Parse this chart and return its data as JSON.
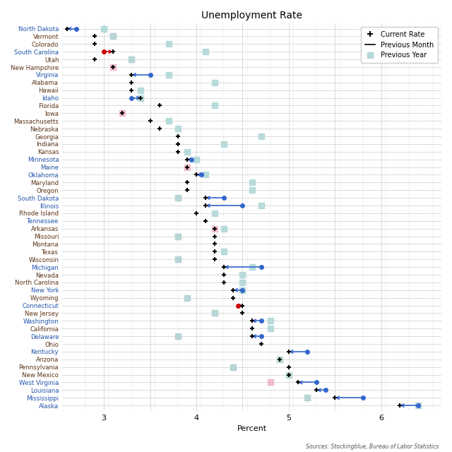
{
  "title": "Unemployment Rate",
  "xlabel": "Percent",
  "source": "Sources: Stockingblue, Bureau of Labor Statistics",
  "states": [
    "North Dakota",
    "Vermont",
    "Colorado",
    "South Carolina",
    "Utah",
    "New Hampshire",
    "Virginia",
    "Alabama",
    "Hawaii",
    "Idaho",
    "Florida",
    "Iowa",
    "Massachusetts",
    "Nebraska",
    "Georgia",
    "Indiana",
    "Kansas",
    "Minnesota",
    "Maine",
    "Oklahoma",
    "Maryland",
    "Oregon",
    "South Dakota",
    "Illinois",
    "Rhode Island",
    "Tennessee",
    "Arkansas",
    "Missouri",
    "Montana",
    "Texas",
    "Wisconsin",
    "Michigan",
    "Nevada",
    "North Carolina",
    "New York",
    "Wyoming",
    "Connecticut",
    "New Jersey",
    "Washington",
    "California",
    "Delaware",
    "Ohio",
    "Kentucky",
    "Arizona",
    "Pennsylvania",
    "New Mexico",
    "West Virginia",
    "Louisiana",
    "Mississippi",
    "Alaska"
  ],
  "current_rate": [
    2.6,
    2.9,
    2.9,
    3.1,
    2.9,
    3.1,
    3.3,
    3.3,
    3.3,
    3.4,
    3.6,
    3.2,
    3.5,
    3.6,
    3.8,
    3.8,
    3.8,
    3.9,
    3.9,
    4.0,
    3.9,
    3.9,
    4.1,
    4.1,
    4.0,
    4.1,
    4.2,
    4.2,
    4.2,
    4.2,
    4.2,
    4.3,
    4.3,
    4.3,
    4.4,
    4.4,
    4.5,
    4.5,
    4.6,
    4.6,
    4.6,
    4.7,
    5.0,
    4.9,
    5.0,
    5.0,
    5.1,
    5.3,
    5.5,
    6.2
  ],
  "prev_month_dot": [
    2.7,
    null,
    null,
    3.0,
    null,
    null,
    3.5,
    null,
    null,
    3.3,
    null,
    null,
    null,
    null,
    null,
    null,
    null,
    3.95,
    null,
    4.05,
    null,
    null,
    4.3,
    4.5,
    null,
    null,
    null,
    null,
    null,
    null,
    null,
    4.7,
    null,
    null,
    4.5,
    null,
    4.45,
    null,
    4.7,
    null,
    4.7,
    null,
    5.2,
    null,
    null,
    null,
    5.3,
    5.4,
    5.8,
    6.4
  ],
  "prev_month_tip": [
    2.6,
    null,
    null,
    3.1,
    null,
    null,
    3.3,
    null,
    null,
    3.4,
    null,
    null,
    null,
    null,
    null,
    null,
    null,
    3.9,
    null,
    4.0,
    null,
    null,
    4.1,
    4.1,
    null,
    null,
    null,
    null,
    null,
    null,
    null,
    4.3,
    null,
    null,
    4.4,
    null,
    4.5,
    null,
    4.6,
    null,
    4.6,
    null,
    5.0,
    null,
    null,
    null,
    5.1,
    5.3,
    5.5,
    6.2
  ],
  "prev_month_color": [
    "blue",
    null,
    null,
    "red",
    null,
    null,
    "blue",
    null,
    null,
    "blue",
    null,
    null,
    null,
    null,
    null,
    null,
    null,
    "blue",
    null,
    "blue",
    null,
    null,
    "blue",
    "blue",
    null,
    null,
    null,
    null,
    null,
    null,
    null,
    "blue",
    null,
    null,
    "blue",
    null,
    "red",
    null,
    "blue",
    null,
    "blue",
    null,
    "blue",
    null,
    null,
    null,
    "blue",
    "blue",
    "blue",
    "blue"
  ],
  "prev_year_val": [
    3.0,
    3.1,
    3.7,
    4.1,
    3.3,
    null,
    3.7,
    4.2,
    3.4,
    3.4,
    4.2,
    null,
    3.7,
    3.8,
    4.7,
    4.3,
    3.9,
    4.0,
    null,
    4.1,
    4.6,
    4.6,
    3.8,
    4.7,
    4.2,
    null,
    4.3,
    3.8,
    null,
    4.3,
    3.8,
    4.6,
    4.5,
    4.5,
    4.5,
    3.9,
    null,
    4.2,
    4.8,
    4.8,
    3.8,
    null,
    null,
    4.9,
    4.4,
    5.0,
    null,
    null,
    5.2,
    6.4
  ],
  "pink_sq": [
    null,
    3.1,
    null,
    null,
    3.3,
    3.1,
    null,
    null,
    null,
    null,
    null,
    3.2,
    null,
    null,
    null,
    null,
    null,
    null,
    3.9,
    null,
    null,
    null,
    3.8,
    null,
    null,
    null,
    4.2,
    3.8,
    null,
    null,
    3.8,
    null,
    null,
    null,
    null,
    3.9,
    null,
    4.2,
    null,
    null,
    3.8,
    null,
    null,
    null,
    4.4,
    null,
    4.8,
    null,
    5.2,
    null
  ],
  "state_label_colors": [
    "blue",
    "black",
    "black",
    "blue",
    "black",
    "black",
    "blue",
    "black",
    "black",
    "blue",
    "black",
    "black",
    "black",
    "black",
    "black",
    "black",
    "black",
    "blue",
    "blue",
    "blue",
    "black",
    "black",
    "blue",
    "blue",
    "black",
    "blue",
    "black",
    "black",
    "black",
    "black",
    "black",
    "blue",
    "black",
    "black",
    "blue",
    "black",
    "blue",
    "black",
    "blue",
    "black",
    "blue",
    "black",
    "blue",
    "black",
    "black",
    "black",
    "blue",
    "blue",
    "blue",
    "blue"
  ],
  "xlim": [
    2.55,
    6.65
  ],
  "xticks": [
    3.0,
    3.5,
    4.0,
    4.5,
    5.0,
    5.5,
    6.0
  ],
  "xtick_labels": [
    "3",
    "",
    "4",
    "",
    "5",
    "",
    "6"
  ],
  "grid_minor_step": 0.25,
  "figsize": [
    6.4,
    6.4
  ],
  "dpi": 100
}
